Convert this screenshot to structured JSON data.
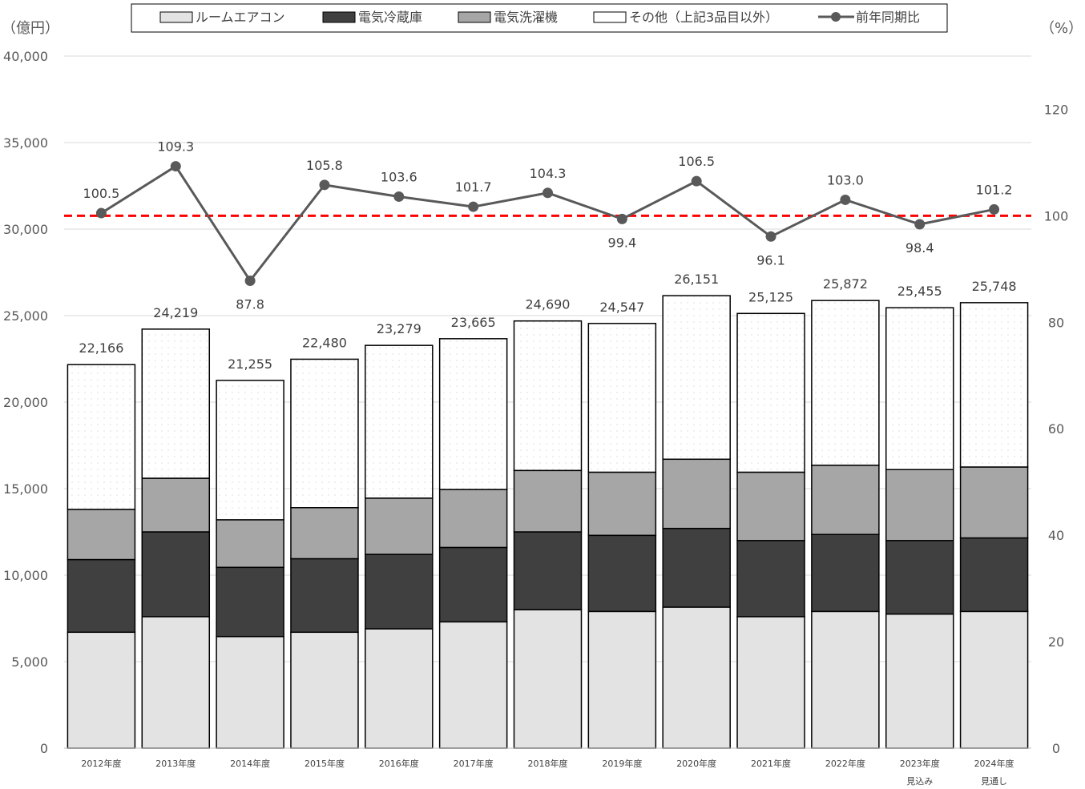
{
  "chart_data": {
    "type": "bar",
    "stacked": true,
    "y_left_unit": "（億円）",
    "y_right_unit": "（%）",
    "ylim": [
      0,
      40000
    ],
    "y_ticks": [
      "0",
      "5,000",
      "10,000",
      "15,000",
      "20,000",
      "25,000",
      "30,000",
      "35,000",
      "40,000"
    ],
    "y_tick_values": [
      0,
      5000,
      10000,
      15000,
      20000,
      25000,
      30000,
      35000,
      40000
    ],
    "y2lim": [
      0,
      130
    ],
    "y2_ticks": [
      "0",
      "20",
      "40",
      "60",
      "80",
      "100",
      "120"
    ],
    "y2_tick_values": [
      0,
      20,
      40,
      60,
      80,
      100,
      120
    ],
    "reference_line": {
      "axis": "right",
      "value": 100,
      "color": "#ff0000"
    },
    "grid": true,
    "legend_position": "top",
    "categories": [
      [
        "2012年度"
      ],
      [
        "2013年度"
      ],
      [
        "2014年度"
      ],
      [
        "2015年度"
      ],
      [
        "2016年度"
      ],
      [
        "2017年度"
      ],
      [
        "2018年度"
      ],
      [
        "2019年度"
      ],
      [
        "2020年度"
      ],
      [
        "2021年度"
      ],
      [
        "2022年度"
      ],
      [
        "2023年度",
        "見込み"
      ],
      [
        "2024年度",
        "見通し"
      ]
    ],
    "series": [
      {
        "name": "ルームエアコン",
        "color": "#e3e3e3",
        "values": [
          6700,
          7600,
          6450,
          6700,
          6900,
          7300,
          8000,
          7900,
          8150,
          7600,
          7900,
          7750,
          7900
        ]
      },
      {
        "name": "電気冷蔵庫",
        "color": "#404040",
        "values": [
          4200,
          4900,
          4000,
          4250,
          4300,
          4300,
          4500,
          4400,
          4550,
          4400,
          4450,
          4250,
          4250
        ]
      },
      {
        "name": "電気洗濯機",
        "color": "#a6a6a6",
        "values": [
          2900,
          3100,
          2750,
          2950,
          3250,
          3350,
          3550,
          3650,
          4000,
          3950,
          4000,
          4100,
          4100
        ]
      },
      {
        "name": "その他（上記3品目以外）",
        "color": "#ffffff",
        "values": [
          8366,
          8619,
          8055,
          8580,
          8829,
          8715,
          8640,
          8597,
          9451,
          9175,
          9522,
          9355,
          9498
        ]
      }
    ],
    "totals": [
      22166,
      24219,
      21255,
      22480,
      23279,
      23665,
      24690,
      24547,
      26151,
      25125,
      25872,
      25455,
      25748
    ],
    "totals_labels": [
      "22,166",
      "24,219",
      "21,255",
      "22,480",
      "23,279",
      "23,665",
      "24,690",
      "24,547",
      "26,151",
      "25,125",
      "25,872",
      "25,455",
      "25,748"
    ],
    "line_series": {
      "name": "前年同期比",
      "axis": "right",
      "color": "#595959",
      "values": [
        100.5,
        109.3,
        87.8,
        105.8,
        103.6,
        101.7,
        104.3,
        99.4,
        106.5,
        96.1,
        103.0,
        98.4,
        101.2
      ],
      "labels": [
        "100.5",
        "109.3",
        "87.8",
        "105.8",
        "103.6",
        "101.7",
        "104.3",
        "99.4",
        "106.5",
        "96.1",
        "103.0",
        "98.4",
        "101.2"
      ],
      "label_below": [
        false,
        false,
        true,
        false,
        false,
        false,
        false,
        true,
        false,
        true,
        false,
        true,
        false
      ]
    }
  }
}
